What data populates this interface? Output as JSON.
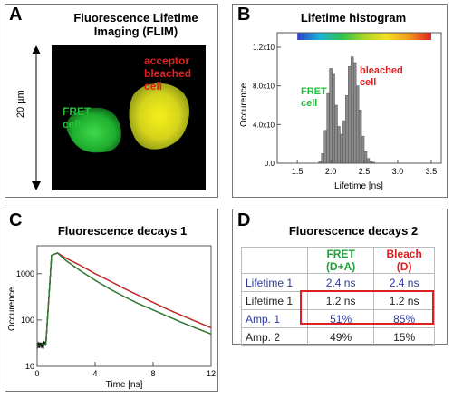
{
  "panels": {
    "a": {
      "letter": "A",
      "title_line1": "Fluorescence Lifetime",
      "title_line2": "Imaging (FLIM)",
      "scale_label": "20 µm",
      "label_acceptor": [
        "acceptor",
        "bleached",
        "cell"
      ],
      "label_fret": [
        "FRET",
        "cell"
      ],
      "colors": {
        "fret": "#22c13a",
        "acceptor": "#e02020",
        "background": "#000000"
      }
    },
    "b": {
      "letter": "B",
      "title": "Lifetime histogram",
      "label_fret": [
        "FRET",
        "cell"
      ],
      "label_bleached": [
        "bleached",
        "cell"
      ],
      "colors": {
        "fret": "#22c13a",
        "bleached": "#e02020",
        "bars": "#8a8a8a"
      }
    },
    "c": {
      "letter": "C",
      "title": "Fluorescence decays 1",
      "colors": {
        "noise": "#111111",
        "fit_green": "#2e7d32",
        "fit_red": "#c62828"
      }
    },
    "d": {
      "letter": "D",
      "title": "Fluorescence decays 2",
      "header": [
        "",
        "FRET (D+A)",
        "Bleach (D)"
      ],
      "rows": [
        {
          "label": "Lifetime 1",
          "fret": "2.4 ns",
          "bleach": "2.4 ns",
          "color": "#2b3a9e"
        },
        {
          "label": "Lifetime 1",
          "fret": "1.2 ns",
          "bleach": "1.2 ns",
          "color": "#222222"
        },
        {
          "label": "Amp. 1",
          "fret": "51%",
          "bleach": "85%",
          "color": "#2b3a9e"
        },
        {
          "label": "Amp. 2",
          "fret": "49%",
          "bleach": "15%",
          "color": "#222222"
        }
      ],
      "colors": {
        "fret_header": "#22a13a",
        "bleach_header": "#e02020",
        "highlight": "#e02020"
      }
    }
  },
  "chart_data": [
    {
      "type": "bar",
      "title": "Lifetime histogram",
      "xlabel": "Lifetime [ns]",
      "ylabel": "Occurence",
      "xlim": [
        1.2,
        3.65
      ],
      "ylim": [
        0,
        1.35
      ],
      "x_ticks": [
        1.5,
        2.0,
        2.5,
        3.0,
        3.5
      ],
      "x_tick_labels": [
        "1.5",
        "2.0",
        "2.5",
        "3.0",
        "3.5"
      ],
      "y_ticks": [
        0,
        0.4,
        0.8,
        1.2
      ],
      "y_tick_labels": [
        "0.0",
        "4.0x10",
        "8.0x10",
        "1.2x10"
      ],
      "bin_width": 0.04,
      "x": [
        1.84,
        1.88,
        1.92,
        1.96,
        2.0,
        2.04,
        2.08,
        2.12,
        2.16,
        2.2,
        2.24,
        2.28,
        2.32,
        2.36,
        2.4,
        2.44,
        2.48,
        2.52,
        2.56,
        2.6,
        2.64
      ],
      "values": [
        0.02,
        0.1,
        0.34,
        0.72,
        0.98,
        0.92,
        0.6,
        0.38,
        0.3,
        0.44,
        0.7,
        1.0,
        1.1,
        1.04,
        0.8,
        0.55,
        0.28,
        0.12,
        0.05,
        0.02,
        0.01
      ],
      "colorbar": {
        "from": 1.5,
        "to": 3.5,
        "stops": [
          "#2f3fc8",
          "#19b3d6",
          "#2fc24a",
          "#a8d62c",
          "#f2e01f",
          "#f29a1f",
          "#e02020"
        ]
      }
    },
    {
      "type": "line",
      "title": "Fluorescence decays 1",
      "xlabel": "Time [ns]",
      "ylabel": "Occurence",
      "xlim": [
        0,
        12
      ],
      "ylim": [
        10,
        4000
      ],
      "yscale": "log",
      "x_ticks": [
        0,
        4,
        8,
        12
      ],
      "x_tick_labels": [
        "0",
        "4",
        "8",
        "12"
      ],
      "y_ticks": [
        10,
        100,
        1000
      ],
      "y_tick_labels": [
        "10",
        "100",
        "1000"
      ],
      "series": [
        {
          "x": [
            0,
            0.6,
            1.0,
            1.4,
            2,
            3,
            4,
            5,
            6,
            7,
            8,
            9,
            10,
            11,
            12
          ],
          "values": [
            28,
            30,
            2500,
            2800,
            2150,
            1500,
            1000,
            700,
            480,
            340,
            240,
            170,
            125,
            92,
            68
          ]
        },
        {
          "x": [
            0,
            0.6,
            1.0,
            1.4,
            2,
            3,
            4,
            5,
            6,
            7,
            8,
            9,
            10,
            11,
            12
          ],
          "values": [
            28,
            30,
            2500,
            2800,
            1900,
            1150,
            720,
            470,
            320,
            225,
            165,
            120,
            88,
            66,
            50
          ]
        }
      ]
    }
  ]
}
